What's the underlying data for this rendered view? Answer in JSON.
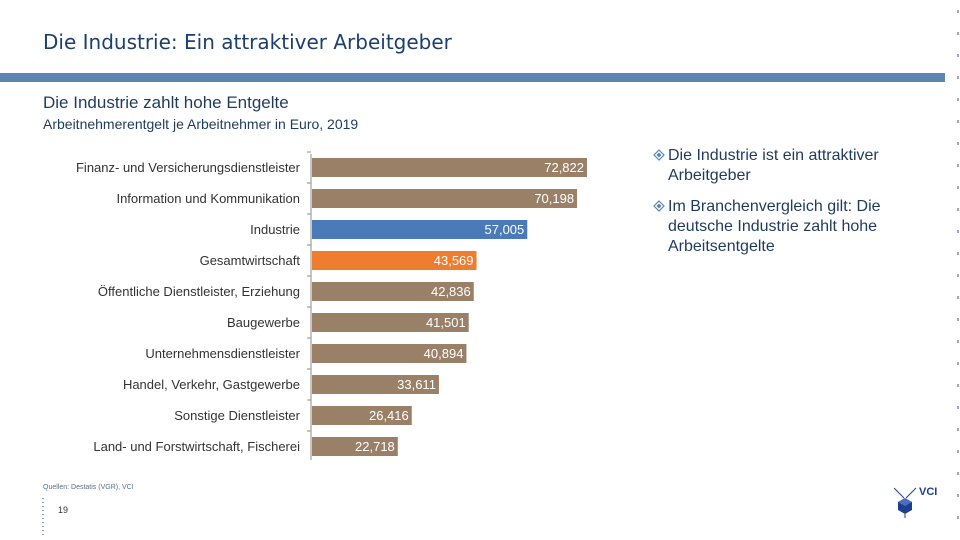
{
  "slide": {
    "title": "Die Industrie: Ein attraktiver Arbeitgeber",
    "subtitle": "Die Industrie zahlt hohe Entgelte",
    "unit_label": "Arbeitnehmerentgelt je Arbeitnehmer in Euro, 2019",
    "bullets": [
      "Die Industrie ist ein attraktiver Arbeitgeber",
      "Im Branchenvergleich gilt: Die deutsche Industrie zahlt hohe Arbeitsentgelte"
    ],
    "source": "Quellen: Destatis (VGR), VCI",
    "page_number": "19",
    "logo_text": "VCI"
  },
  "chart_data": {
    "type": "bar",
    "orientation": "horizontal",
    "title": "Die Industrie zahlt hohe Entgelte",
    "subtitle": "Arbeitnehmerentgelt je Arbeitnehmer in Euro, 2019",
    "categories": [
      "Finanz- und Versicherungsdienstleister",
      "Information und Kommunikation",
      "Industrie",
      "Gesamtwirtschaft",
      "Öffentliche Dienstleister, Erziehung",
      "Baugewerbe",
      "Unternehmensdienstleister",
      "Handel, Verkehr, Gastgewerbe",
      "Sonstige Dienstleister",
      "Land- und Forstwirtschaft, Fischerei"
    ],
    "values": [
      72822,
      70198,
      57005,
      43569,
      42836,
      41501,
      40894,
      33611,
      26416,
      22718
    ],
    "value_labels": [
      "72,822",
      "70,198",
      "57,005",
      "43,569",
      "42,836",
      "41,501",
      "40,894",
      "33,611",
      "26,416",
      "22,718"
    ],
    "highlight": {
      "Industrie": "#4a7ab8",
      "Gesamtwirtschaft": "#ef7d2f"
    },
    "default_color": "#9b8068",
    "xlim": [
      0,
      72822
    ],
    "xlabel": "",
    "ylabel": "",
    "grid": false,
    "legend": "none"
  }
}
